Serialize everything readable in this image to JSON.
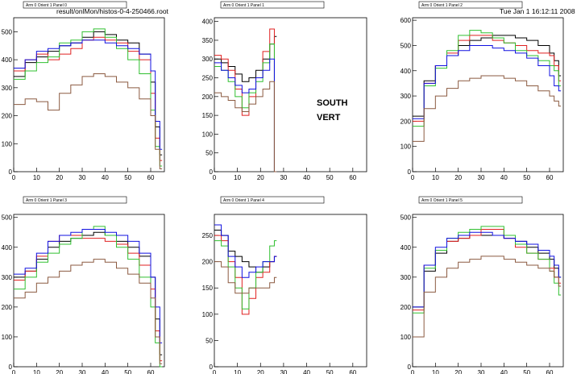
{
  "header": {
    "file_path": "result/onlMon/histos-0-4-250466.root",
    "timestamp": "Tue Jan  1 16:12:11 2008"
  },
  "annotation": {
    "line1": "SOUTH",
    "line2": "VERT"
  },
  "colors": {
    "black": "#000000",
    "red": "#e02020",
    "green": "#30c030",
    "blue": "#1010e0",
    "brown": "#8b5a40"
  },
  "chart_data": [
    {
      "type": "line",
      "title": "Arm 0 Orient 1 Panel 0",
      "xlim": [
        0,
        66
      ],
      "ylim": [
        0,
        550
      ],
      "xticks": [
        0,
        10,
        20,
        30,
        40,
        50,
        60
      ],
      "yticks": [
        0,
        100,
        200,
        300,
        400,
        500
      ],
      "series": [
        {
          "color": "black",
          "x": [
            0,
            5,
            10,
            15,
            20,
            25,
            30,
            35,
            40,
            45,
            50,
            55,
            60,
            62,
            64
          ],
          "values": [
            340,
            390,
            410,
            430,
            450,
            460,
            480,
            500,
            490,
            470,
            460,
            420,
            320,
            160,
            60
          ]
        },
        {
          "color": "red",
          "x": [
            0,
            5,
            10,
            15,
            20,
            25,
            30,
            35,
            40,
            45,
            50,
            55,
            60,
            62,
            64
          ],
          "values": [
            360,
            400,
            420,
            400,
            420,
            440,
            470,
            480,
            470,
            460,
            430,
            400,
            280,
            120,
            40
          ]
        },
        {
          "color": "green",
          "x": [
            0,
            5,
            10,
            15,
            20,
            25,
            30,
            35,
            40,
            45,
            50,
            55,
            60,
            62,
            64
          ],
          "values": [
            330,
            360,
            390,
            410,
            460,
            470,
            500,
            510,
            480,
            440,
            400,
            350,
            220,
            90,
            20
          ]
        },
        {
          "color": "blue",
          "x": [
            0,
            5,
            10,
            15,
            20,
            25,
            30,
            35,
            40,
            45,
            50,
            55,
            60,
            62,
            64
          ],
          "values": [
            370,
            400,
            430,
            440,
            450,
            460,
            470,
            470,
            460,
            450,
            440,
            420,
            360,
            180,
            80
          ]
        },
        {
          "color": "brown",
          "x": [
            0,
            5,
            10,
            15,
            20,
            25,
            30,
            35,
            40,
            45,
            50,
            55,
            60,
            62,
            64
          ],
          "values": [
            240,
            260,
            250,
            220,
            280,
            310,
            340,
            350,
            340,
            320,
            300,
            260,
            200,
            80,
            10
          ]
        }
      ]
    },
    {
      "type": "line",
      "title": "Arm 0 Orient 1 Panel 1",
      "xlim": [
        0,
        66
      ],
      "ylim": [
        0,
        410
      ],
      "xticks": [
        0,
        10,
        20,
        30,
        40,
        50,
        60
      ],
      "yticks": [
        0,
        50,
        100,
        150,
        200,
        250,
        300,
        350,
        400
      ],
      "series": [
        {
          "color": "black",
          "x": [
            0,
            3,
            6,
            9,
            12,
            15,
            18,
            21,
            24,
            26
          ],
          "values": [
            300,
            290,
            280,
            260,
            240,
            250,
            270,
            300,
            340,
            360
          ]
        },
        {
          "color": "red",
          "x": [
            0,
            3,
            6,
            9,
            12,
            15,
            18,
            21,
            24,
            26
          ],
          "values": [
            310,
            300,
            270,
            220,
            150,
            200,
            250,
            320,
            380,
            0
          ]
        },
        {
          "color": "green",
          "x": [
            0,
            3,
            6,
            9,
            12,
            15,
            18,
            21,
            24,
            26
          ],
          "values": [
            280,
            270,
            240,
            200,
            170,
            210,
            240,
            290,
            340,
            0
          ]
        },
        {
          "color": "blue",
          "x": [
            0,
            3,
            6,
            9,
            12,
            15,
            18,
            21,
            24,
            26
          ],
          "values": [
            290,
            270,
            250,
            230,
            210,
            220,
            250,
            270,
            300,
            0
          ]
        },
        {
          "color": "brown",
          "x": [
            0,
            3,
            6,
            9,
            12,
            15,
            18,
            21,
            24,
            26
          ],
          "values": [
            210,
            200,
            190,
            170,
            160,
            180,
            200,
            220,
            240,
            0
          ]
        }
      ]
    },
    {
      "type": "line",
      "title": "Arm 0 Orient 1 Panel 2",
      "xlim": [
        0,
        66
      ],
      "ylim": [
        0,
        610
      ],
      "xticks": [
        0,
        10,
        20,
        30,
        40,
        50,
        60
      ],
      "yticks": [
        0,
        100,
        200,
        300,
        400,
        500,
        600
      ],
      "series": [
        {
          "color": "black",
          "x": [
            0,
            5,
            10,
            15,
            20,
            25,
            30,
            35,
            40,
            45,
            50,
            55,
            60,
            62,
            64
          ],
          "values": [
            220,
            360,
            420,
            460,
            500,
            520,
            530,
            540,
            540,
            530,
            520,
            500,
            470,
            440,
            380
          ]
        },
        {
          "color": "red",
          "x": [
            0,
            5,
            10,
            15,
            20,
            25,
            30,
            35,
            40,
            45,
            50,
            55,
            60,
            62,
            64
          ],
          "values": [
            200,
            350,
            420,
            470,
            520,
            540,
            540,
            520,
            510,
            500,
            480,
            470,
            460,
            420,
            360
          ]
        },
        {
          "color": "green",
          "x": [
            0,
            5,
            10,
            15,
            20,
            25,
            30,
            35,
            40,
            45,
            50,
            55,
            60,
            62,
            64
          ],
          "values": [
            180,
            340,
            410,
            480,
            540,
            560,
            550,
            530,
            510,
            480,
            460,
            440,
            420,
            400,
            340
          ]
        },
        {
          "color": "blue",
          "x": [
            0,
            5,
            10,
            15,
            20,
            25,
            30,
            35,
            40,
            45,
            50,
            55,
            60,
            62,
            64
          ],
          "values": [
            210,
            350,
            420,
            460,
            480,
            500,
            500,
            490,
            480,
            470,
            450,
            420,
            380,
            340,
            320
          ]
        },
        {
          "color": "brown",
          "x": [
            0,
            5,
            10,
            15,
            20,
            25,
            30,
            35,
            40,
            45,
            50,
            55,
            60,
            62,
            64
          ],
          "values": [
            120,
            250,
            300,
            330,
            360,
            370,
            380,
            380,
            370,
            360,
            340,
            320,
            300,
            280,
            260
          ]
        }
      ]
    },
    {
      "type": "line",
      "title": "Arm 0 Orient 1 Panel 3",
      "xlim": [
        0,
        66
      ],
      "ylim": [
        0,
        510
      ],
      "xticks": [
        0,
        10,
        20,
        30,
        40,
        50,
        60
      ],
      "yticks": [
        0,
        100,
        200,
        300,
        400,
        500
      ],
      "series": [
        {
          "color": "black",
          "x": [
            0,
            5,
            10,
            15,
            20,
            25,
            30,
            35,
            40,
            45,
            50,
            55,
            60,
            62,
            64
          ],
          "values": [
            300,
            320,
            360,
            400,
            420,
            430,
            440,
            450,
            440,
            420,
            400,
            370,
            300,
            160,
            40
          ]
        },
        {
          "color": "red",
          "x": [
            0,
            5,
            10,
            15,
            20,
            25,
            30,
            35,
            40,
            45,
            50,
            55,
            60,
            62,
            64
          ],
          "values": [
            290,
            320,
            370,
            420,
            440,
            440,
            430,
            430,
            420,
            410,
            380,
            340,
            260,
            120,
            20
          ]
        },
        {
          "color": "green",
          "x": [
            0,
            5,
            10,
            15,
            20,
            25,
            30,
            35,
            40,
            45,
            50,
            55,
            60,
            62,
            64
          ],
          "values": [
            260,
            300,
            350,
            380,
            410,
            430,
            460,
            470,
            440,
            400,
            360,
            300,
            200,
            80,
            0
          ]
        },
        {
          "color": "blue",
          "x": [
            0,
            5,
            10,
            15,
            20,
            25,
            30,
            35,
            40,
            45,
            50,
            55,
            60,
            62,
            64
          ],
          "values": [
            310,
            330,
            380,
            420,
            440,
            450,
            460,
            460,
            450,
            440,
            420,
            380,
            300,
            200,
            80
          ]
        },
        {
          "color": "brown",
          "x": [
            0,
            5,
            10,
            15,
            20,
            25,
            30,
            35,
            40,
            45,
            50,
            55,
            60,
            62,
            64
          ],
          "values": [
            230,
            250,
            280,
            300,
            320,
            340,
            350,
            360,
            350,
            330,
            310,
            280,
            230,
            100,
            10
          ]
        }
      ]
    },
    {
      "type": "line",
      "title": "Arm 0 Orient 1 Panel 4",
      "xlim": [
        0,
        66
      ],
      "ylim": [
        0,
        290
      ],
      "xticks": [
        0,
        10,
        20,
        30,
        40,
        50,
        60
      ],
      "yticks": [
        0,
        50,
        100,
        150,
        200,
        250
      ],
      "series": [
        {
          "color": "black",
          "x": [
            0,
            3,
            6,
            9,
            12,
            15,
            18,
            21,
            24,
            26
          ],
          "values": [
            260,
            250,
            220,
            210,
            200,
            190,
            180,
            190,
            200,
            210
          ]
        },
        {
          "color": "red",
          "x": [
            0,
            3,
            6,
            9,
            12,
            15,
            18,
            21,
            24,
            26
          ],
          "values": [
            250,
            240,
            200,
            170,
            100,
            130,
            170,
            180,
            200,
            210
          ]
        },
        {
          "color": "green",
          "x": [
            0,
            3,
            6,
            9,
            12,
            15,
            18,
            21,
            24,
            26
          ],
          "values": [
            240,
            230,
            190,
            150,
            110,
            150,
            180,
            200,
            230,
            240
          ]
        },
        {
          "color": "blue",
          "x": [
            0,
            3,
            6,
            9,
            12,
            15,
            18,
            21,
            24,
            26
          ],
          "values": [
            270,
            250,
            210,
            190,
            170,
            180,
            190,
            200,
            200,
            210
          ]
        },
        {
          "color": "brown",
          "x": [
            0,
            3,
            6,
            9,
            12,
            15,
            18,
            21,
            24,
            26
          ],
          "values": [
            200,
            190,
            160,
            140,
            140,
            150,
            150,
            150,
            160,
            170
          ]
        }
      ]
    },
    {
      "type": "line",
      "title": "Arm 0 Orient 1 Panel 5",
      "xlim": [
        0,
        66
      ],
      "ylim": [
        0,
        510
      ],
      "xticks": [
        0,
        10,
        20,
        30,
        40,
        50,
        60
      ],
      "yticks": [
        0,
        100,
        200,
        300,
        400,
        500
      ],
      "series": [
        {
          "color": "black",
          "x": [
            0,
            5,
            10,
            15,
            20,
            25,
            30,
            35,
            40,
            45,
            50,
            55,
            60,
            62,
            64
          ],
          "values": [
            200,
            320,
            380,
            420,
            430,
            440,
            440,
            440,
            430,
            420,
            400,
            380,
            360,
            330,
            300
          ]
        },
        {
          "color": "red",
          "x": [
            0,
            5,
            10,
            15,
            20,
            25,
            30,
            35,
            40,
            45,
            50,
            55,
            60,
            62,
            64
          ],
          "values": [
            190,
            340,
            390,
            420,
            430,
            440,
            460,
            460,
            430,
            400,
            380,
            360,
            330,
            300,
            280
          ]
        },
        {
          "color": "green",
          "x": [
            0,
            5,
            10,
            15,
            20,
            25,
            30,
            35,
            40,
            45,
            50,
            55,
            60,
            62,
            64
          ],
          "values": [
            180,
            330,
            390,
            430,
            450,
            460,
            470,
            470,
            440,
            410,
            380,
            360,
            320,
            280,
            240
          ]
        },
        {
          "color": "blue",
          "x": [
            0,
            5,
            10,
            15,
            20,
            25,
            30,
            35,
            40,
            45,
            50,
            55,
            60,
            62,
            64
          ],
          "values": [
            200,
            340,
            400,
            430,
            440,
            450,
            450,
            440,
            430,
            420,
            410,
            390,
            370,
            340,
            300
          ]
        },
        {
          "color": "brown",
          "x": [
            0,
            5,
            10,
            15,
            20,
            25,
            30,
            35,
            40,
            45,
            50,
            55,
            60,
            62,
            64
          ],
          "values": [
            100,
            250,
            300,
            330,
            350,
            360,
            370,
            370,
            360,
            350,
            340,
            330,
            320,
            300,
            270
          ]
        }
      ]
    }
  ]
}
